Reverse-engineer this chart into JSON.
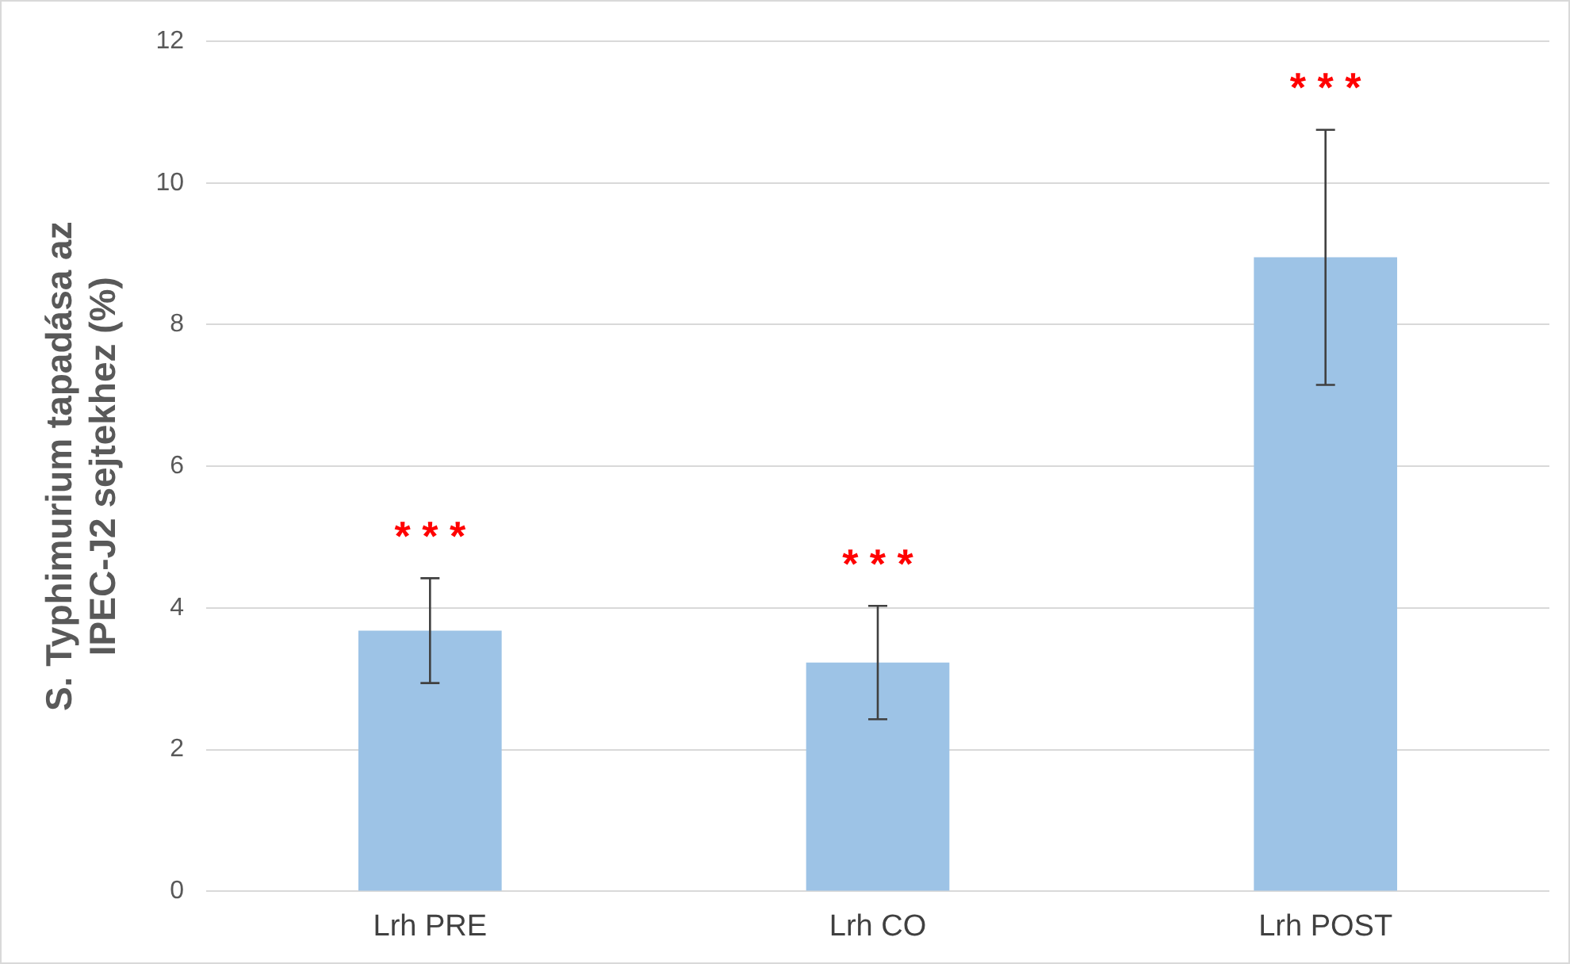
{
  "chart_data": {
    "type": "bar",
    "ylabel": "S. Typhimurium tapadása az\nIPEC-J2 sejtekhez (%)",
    "categories": [
      "Lrh PRE",
      "Lrh CO",
      "Lrh POST"
    ],
    "values": [
      3.68,
      3.23,
      8.95
    ],
    "errors": [
      0.74,
      0.8,
      1.8
    ],
    "color": "#9dc3e6",
    "ylim": [
      0,
      12
    ],
    "yticks": [
      0,
      2,
      4,
      6,
      8,
      10,
      12
    ],
    "grid": "y",
    "legend": false,
    "annotations": [
      "* * *",
      "* * *",
      "* * *"
    ]
  }
}
